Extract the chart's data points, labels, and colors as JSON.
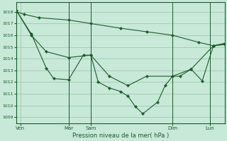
{
  "bg_color": "#c8e8d8",
  "grid_color": "#a0c8b0",
  "line_color": "#1a5c2a",
  "marker_color": "#1a5c2a",
  "xlabel": "Pression niveau de la mer( hPa )",
  "ylim": [
    1008.5,
    1018.8
  ],
  "yticks": [
    1009,
    1010,
    1011,
    1012,
    1013,
    1014,
    1015,
    1016,
    1017,
    1018
  ],
  "xlim": [
    0,
    56
  ],
  "vlines": [
    14,
    20,
    42,
    52
  ],
  "xtick_positions": [
    1,
    14,
    20,
    42,
    52
  ],
  "xtick_labels": [
    "Ven",
    "Mar",
    "Sam",
    "Dim",
    "Lun"
  ],
  "line1_x": [
    0,
    2,
    6,
    14,
    20,
    28,
    35,
    42,
    49,
    53,
    56
  ],
  "line1_y": [
    1018.0,
    1017.8,
    1017.5,
    1017.3,
    1017.0,
    1016.6,
    1016.3,
    1016.0,
    1015.4,
    1015.1,
    1015.2
  ],
  "line2_x": [
    0,
    4,
    8,
    14,
    20,
    25,
    30,
    35,
    42,
    47,
    53,
    56
  ],
  "line2_y": [
    1018.1,
    1016.0,
    1014.6,
    1014.1,
    1014.3,
    1012.5,
    1011.7,
    1012.5,
    1012.5,
    1013.1,
    1015.1,
    1015.3
  ],
  "line3_x": [
    0,
    4,
    8,
    10,
    14,
    18,
    20,
    22,
    25,
    28,
    30,
    32,
    34,
    38,
    40,
    42,
    44,
    47,
    50,
    53,
    56
  ],
  "line3_y": [
    1018.1,
    1016.1,
    1013.2,
    1012.3,
    1012.2,
    1014.3,
    1014.3,
    1012.0,
    1011.5,
    1011.2,
    1010.8,
    1009.9,
    1009.3,
    1010.3,
    1011.7,
    1012.5,
    1012.5,
    1013.1,
    1012.1,
    1015.1,
    1015.3
  ]
}
